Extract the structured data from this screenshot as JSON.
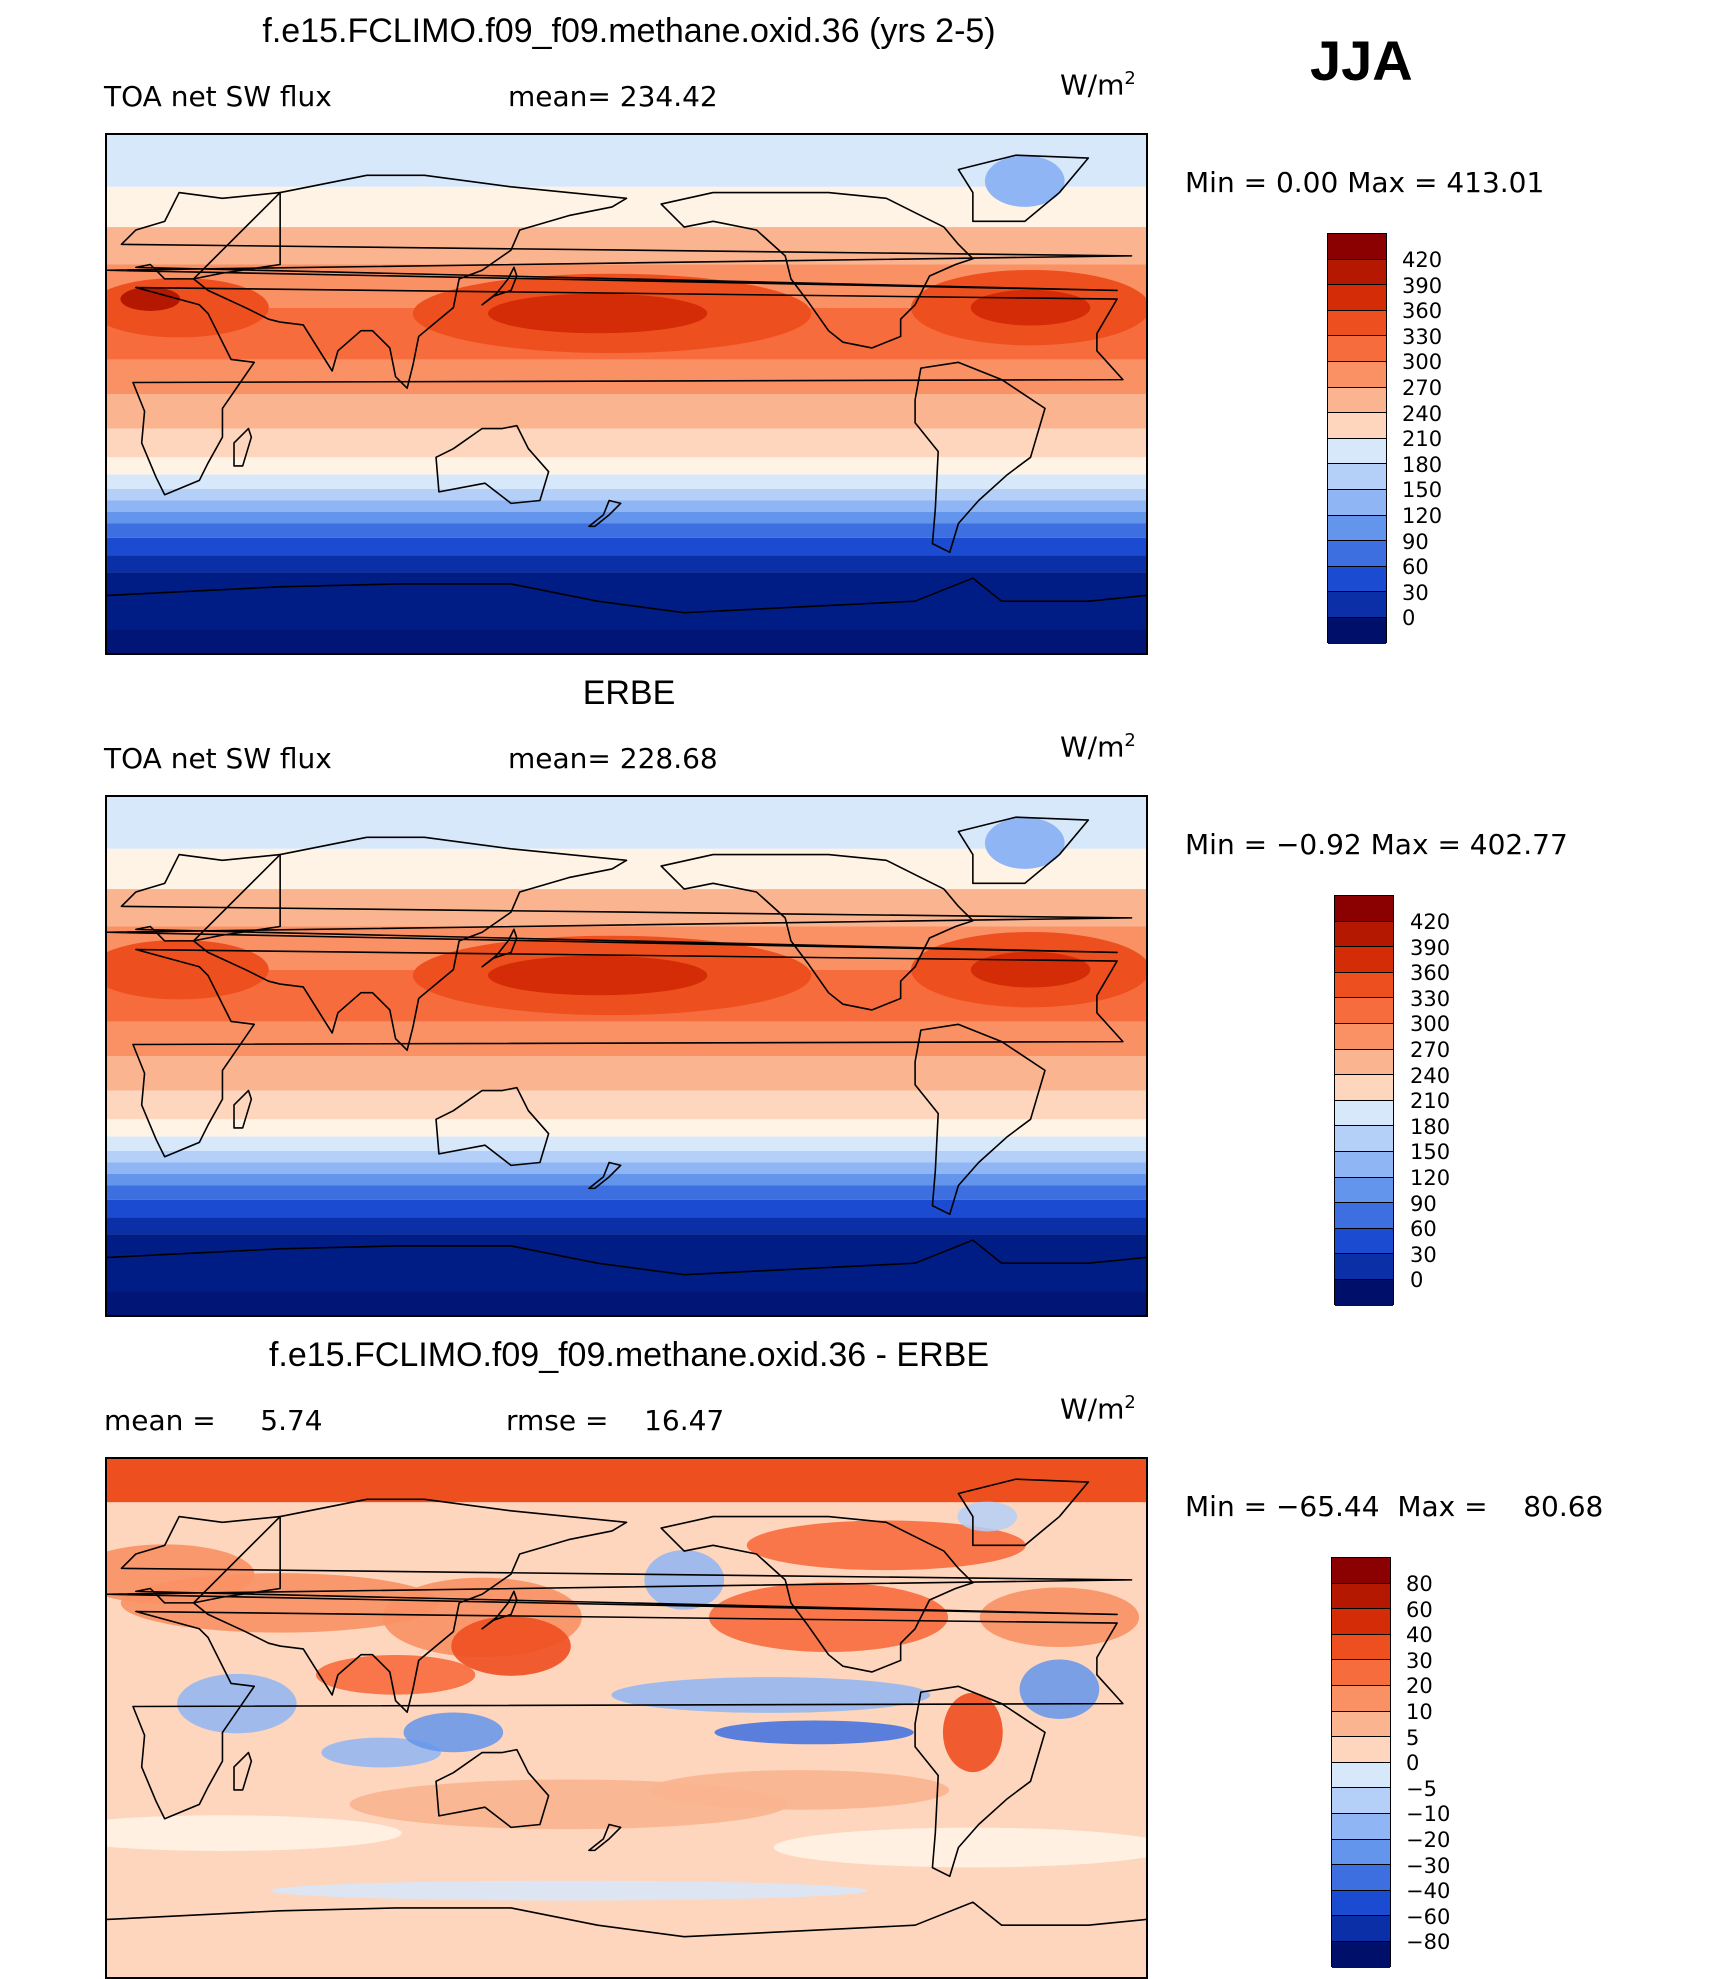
{
  "season": "JJA",
  "panels": [
    {
      "id": "model",
      "title": "f.e15.FCLIMO.f09_f09.methane.oxid.36 (yrs 2-5)",
      "left_label": "TOA net SW flux",
      "stat1": "mean= 234.42",
      "stat2": "",
      "units": "W/m",
      "units_exp": "2",
      "minmax": "Min =    0.00  Max =  413.01",
      "levels": [
        "420",
        "390",
        "360",
        "330",
        "300",
        "270",
        "240",
        "210",
        "180",
        "150",
        "120",
        "90",
        "60",
        "30",
        "0"
      ],
      "colors": [
        "#8b0000",
        "#b41800",
        "#d42c06",
        "#ee4f1f",
        "#f76c3c",
        "#f99164",
        "#fab48f",
        "#fdd6bd",
        "#fff3e5",
        "#d8e8fb",
        "#b4d0f8",
        "#8fb5f4",
        "#6495ec",
        "#3d6fe0",
        "#1a4bd1",
        "#0a2fa7",
        "#001d85",
        "#00106a"
      ]
    },
    {
      "id": "obs",
      "title": "ERBE",
      "left_label": "TOA net SW flux",
      "stat1": "mean= 228.68",
      "stat2": "",
      "units": "W/m",
      "units_exp": "2",
      "minmax": "Min =  −0.92  Max =  402.77",
      "levels": [
        "420",
        "390",
        "360",
        "330",
        "300",
        "270",
        "240",
        "210",
        "180",
        "150",
        "120",
        "90",
        "60",
        "30",
        "0"
      ],
      "colors": [
        "#8b0000",
        "#b41800",
        "#d42c06",
        "#ee4f1f",
        "#f76c3c",
        "#f99164",
        "#fab48f",
        "#fdd6bd",
        "#fff3e5",
        "#d8e8fb",
        "#b4d0f8",
        "#8fb5f4",
        "#6495ec",
        "#3d6fe0",
        "#1a4bd1",
        "#0a2fa7",
        "#001d85",
        "#00106a"
      ]
    },
    {
      "id": "diff",
      "title": "f.e15.FCLIMO.f09_f09.methane.oxid.36 - ERBE",
      "left_label": "mean =     5.74",
      "stat1": "rmse =    16.47",
      "stat2": "",
      "units": "W/m",
      "units_exp": "2",
      "minmax": "Min = −65.44  Max =    80.68",
      "levels": [
        "80",
        "60",
        "40",
        "30",
        "20",
        "10",
        "5",
        "0",
        "−5",
        "−10",
        "−20",
        "−30",
        "−40",
        "−60",
        "−80"
      ],
      "colors": [
        "#8b0000",
        "#b41800",
        "#d42c06",
        "#ee4f1f",
        "#f76c3c",
        "#f99164",
        "#fab48f",
        "#fdd6bd",
        "#fff3e5",
        "#d8e8fb",
        "#b4d0f8",
        "#8fb5f4",
        "#6495ec",
        "#3d6fe0",
        "#1a4bd1",
        "#0a2fa7",
        "#001d85",
        "#00106a"
      ]
    }
  ]
}
